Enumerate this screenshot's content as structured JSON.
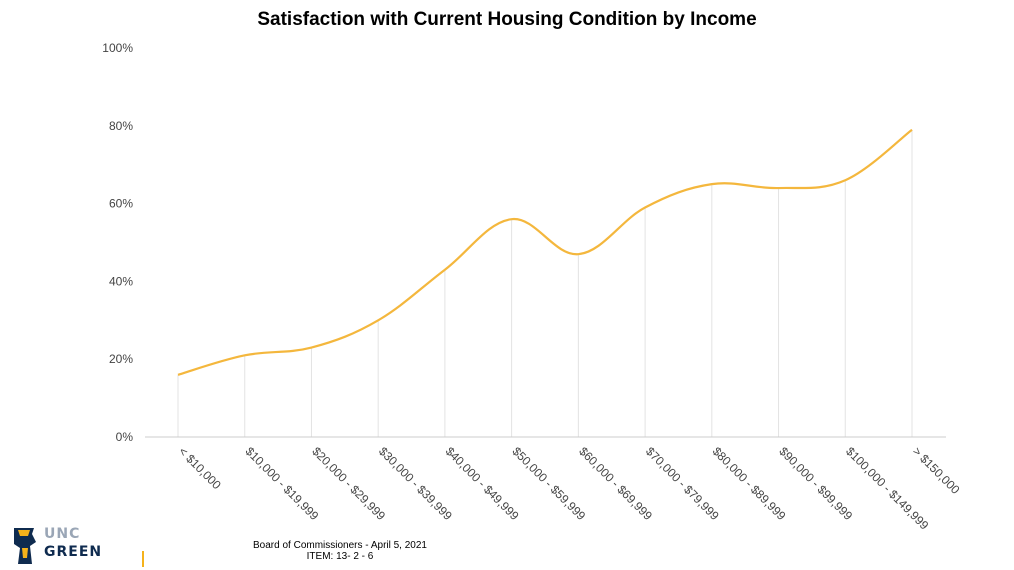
{
  "chart_data": {
    "type": "line",
    "title": "Satisfaction with Current Housing Condition by Income",
    "xlabel": "",
    "ylabel": "",
    "categories": [
      "< $10,000",
      "$10,000 - $19,999",
      "$20,000 - $29,999",
      "$30,000 - $39,999",
      "$40,000 - $49,999",
      "$50,000 - $59,999",
      "$60,000 - $69,999",
      "$70,000 - $79,999",
      "$80,000 - $89,999",
      "$90,000 - $99,999",
      "$100,000 - $149,999",
      "> $150,000"
    ],
    "series": [
      {
        "values": [
          16,
          21,
          23,
          30,
          43,
          56,
          47,
          59,
          65,
          64,
          66,
          79
        ]
      }
    ],
    "ylim": [
      0,
      100
    ],
    "yticks": [
      0,
      20,
      40,
      60,
      80,
      100
    ],
    "ytick_labels": [
      "0%",
      "20%",
      "40%",
      "60%",
      "80%",
      "100%"
    ],
    "grid": "vertical drop lines",
    "colors": {
      "line": "#f4b73d",
      "drop_line": "#e3e3e3",
      "axis": "#cccccc",
      "tick_text": "#444444"
    }
  },
  "footer": {
    "line1": "Board of Commissioners - April 5, 2021",
    "line2": "ITEM: 13- 2 - 6"
  },
  "logo": {
    "unc": "UNC",
    "green": "GREEN"
  }
}
